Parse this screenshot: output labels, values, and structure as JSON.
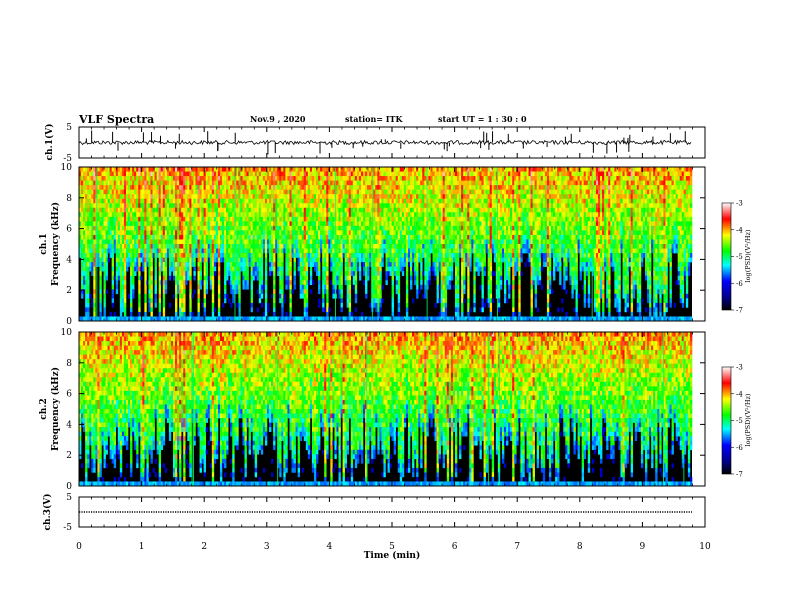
{
  "header": {
    "title": "VLF Spectra",
    "date": "Nov.9 , 2020",
    "station": "station= ITK",
    "start": "start UT = 1 : 30 : 0"
  },
  "chart_data": [
    {
      "type": "line",
      "id": "ch1-voltage",
      "ylabel": "ch.1(V)",
      "ylim": [
        -5,
        5
      ],
      "yticks": [
        "5",
        "-5"
      ],
      "xlim": [
        0,
        10
      ],
      "baseline": 0,
      "description_series": "noisy waveform near 0 V with occasional spikes"
    },
    {
      "type": "heatmap",
      "id": "ch1-spectrogram",
      "ylabel": "ch.1\nFrequency (kHz)",
      "ylabel_top": "ch.1",
      "ylabel_bottom": "Frequency (kHz)",
      "ylim": [
        0,
        10
      ],
      "yticks": [
        "0",
        "2",
        "4",
        "6",
        "8",
        "10"
      ],
      "xlim": [
        0,
        10
      ],
      "colorbar": {
        "label": "log(PSD)(V²/Hz)",
        "range": [
          -7,
          -3
        ],
        "ticks": [
          "-3",
          "-4",
          "-5",
          "-6",
          "-7"
        ]
      }
    },
    {
      "type": "heatmap",
      "id": "ch2-spectrogram",
      "ylabel_top": "ch.2",
      "ylabel_bottom": "Frequency (kHz)",
      "ylim": [
        0,
        10
      ],
      "yticks": [
        "0",
        "2",
        "4",
        "6",
        "8",
        "10"
      ],
      "xlim": [
        0,
        10
      ],
      "colorbar": {
        "label": "log(PSD)(V²/Hz)",
        "range": [
          -7,
          -3
        ],
        "ticks": [
          "-3",
          "-4",
          "-5",
          "-6",
          "-7"
        ]
      }
    },
    {
      "type": "line",
      "id": "ch3-voltage",
      "ylabel": "ch.3(V)",
      "ylim": [
        -5,
        5
      ],
      "yticks": [
        "5",
        "-5"
      ],
      "xlim": [
        0,
        10
      ],
      "baseline": 0
    }
  ],
  "xaxis": {
    "label": "Time (min)",
    "ticks": [
      "0",
      "1",
      "2",
      "3",
      "4",
      "5",
      "6",
      "7",
      "8",
      "9",
      "10"
    ]
  },
  "colors": {
    "background": "#000000",
    "accent": "#ff0000"
  }
}
